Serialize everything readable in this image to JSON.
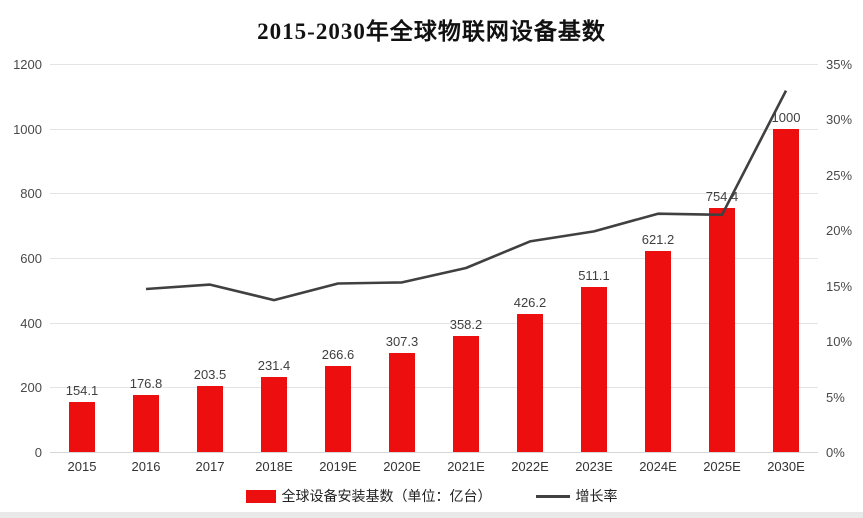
{
  "chart_data": {
    "type": "bar",
    "combo": "bar+line",
    "title": "2015-2030年全球物联网设备基数",
    "categories": [
      "2015",
      "2016",
      "2017",
      "2018E",
      "2019E",
      "2020E",
      "2021E",
      "2022E",
      "2023E",
      "2024E",
      "2025E",
      "2030E"
    ],
    "series": [
      {
        "name": "全球设备安装基数（单位：亿台）",
        "type": "bar",
        "axis": "left",
        "color": "#ed0f0f",
        "values": [
          154.1,
          176.8,
          203.5,
          231.4,
          266.6,
          307.3,
          358.2,
          426.2,
          511.1,
          621.2,
          754.4,
          1000
        ],
        "labels": [
          "154.1",
          "176.8",
          "203.5",
          "231.4",
          "266.6",
          "307.3",
          "358.2",
          "426.2",
          "511.1",
          "621.2",
          "754.4",
          "1000"
        ]
      },
      {
        "name": "增长率",
        "type": "line",
        "axis": "right",
        "color": "#404040",
        "values": [
          null,
          14.7,
          15.1,
          13.7,
          15.2,
          15.3,
          16.6,
          19.0,
          19.9,
          21.5,
          21.4,
          32.6
        ]
      }
    ],
    "left_axis": {
      "min": 0,
      "max": 1200,
      "step": 200,
      "ticks": [
        "0",
        "200",
        "400",
        "600",
        "800",
        "1000",
        "1200"
      ]
    },
    "right_axis": {
      "min": 0,
      "max": 35,
      "step": 5,
      "ticks": [
        "0%",
        "5%",
        "10%",
        "15%",
        "20%",
        "25%",
        "30%",
        "35%"
      ]
    },
    "grid": true,
    "legend_position": "bottom"
  },
  "legend": {
    "bar_label": "全球设备安装基数（单位：亿台）",
    "line_label": "增长率"
  }
}
